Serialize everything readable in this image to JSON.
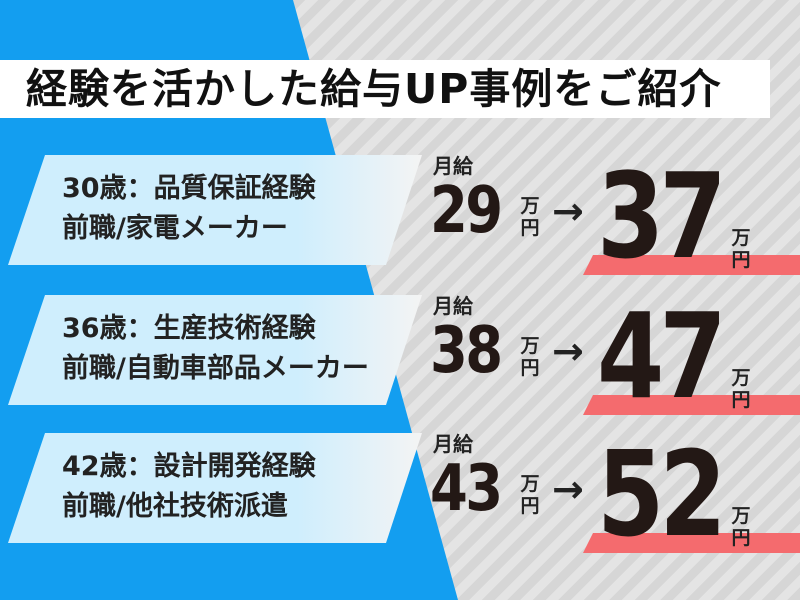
{
  "title": "経験を活かした給与UP事例をご紹介",
  "colors": {
    "blue": "#139ef0",
    "card": "#cfeefd",
    "accent_red": "#f46b6e",
    "text": "#231815"
  },
  "salary_label": "月給",
  "unit_man": "万",
  "unit_yen": "円",
  "arrow": "→",
  "cases": [
    {
      "line1": "30歳：品質保証経験",
      "line2": "前職/家電メーカー",
      "before": "29",
      "after": "37"
    },
    {
      "line1": "36歳：生産技術経験",
      "line2": "前職/自動車部品メーカー",
      "before": "38",
      "after": "47"
    },
    {
      "line1": "42歳：設計開発経験",
      "line2": "前職/他社技術派遣",
      "before": "43",
      "after": "52"
    }
  ]
}
